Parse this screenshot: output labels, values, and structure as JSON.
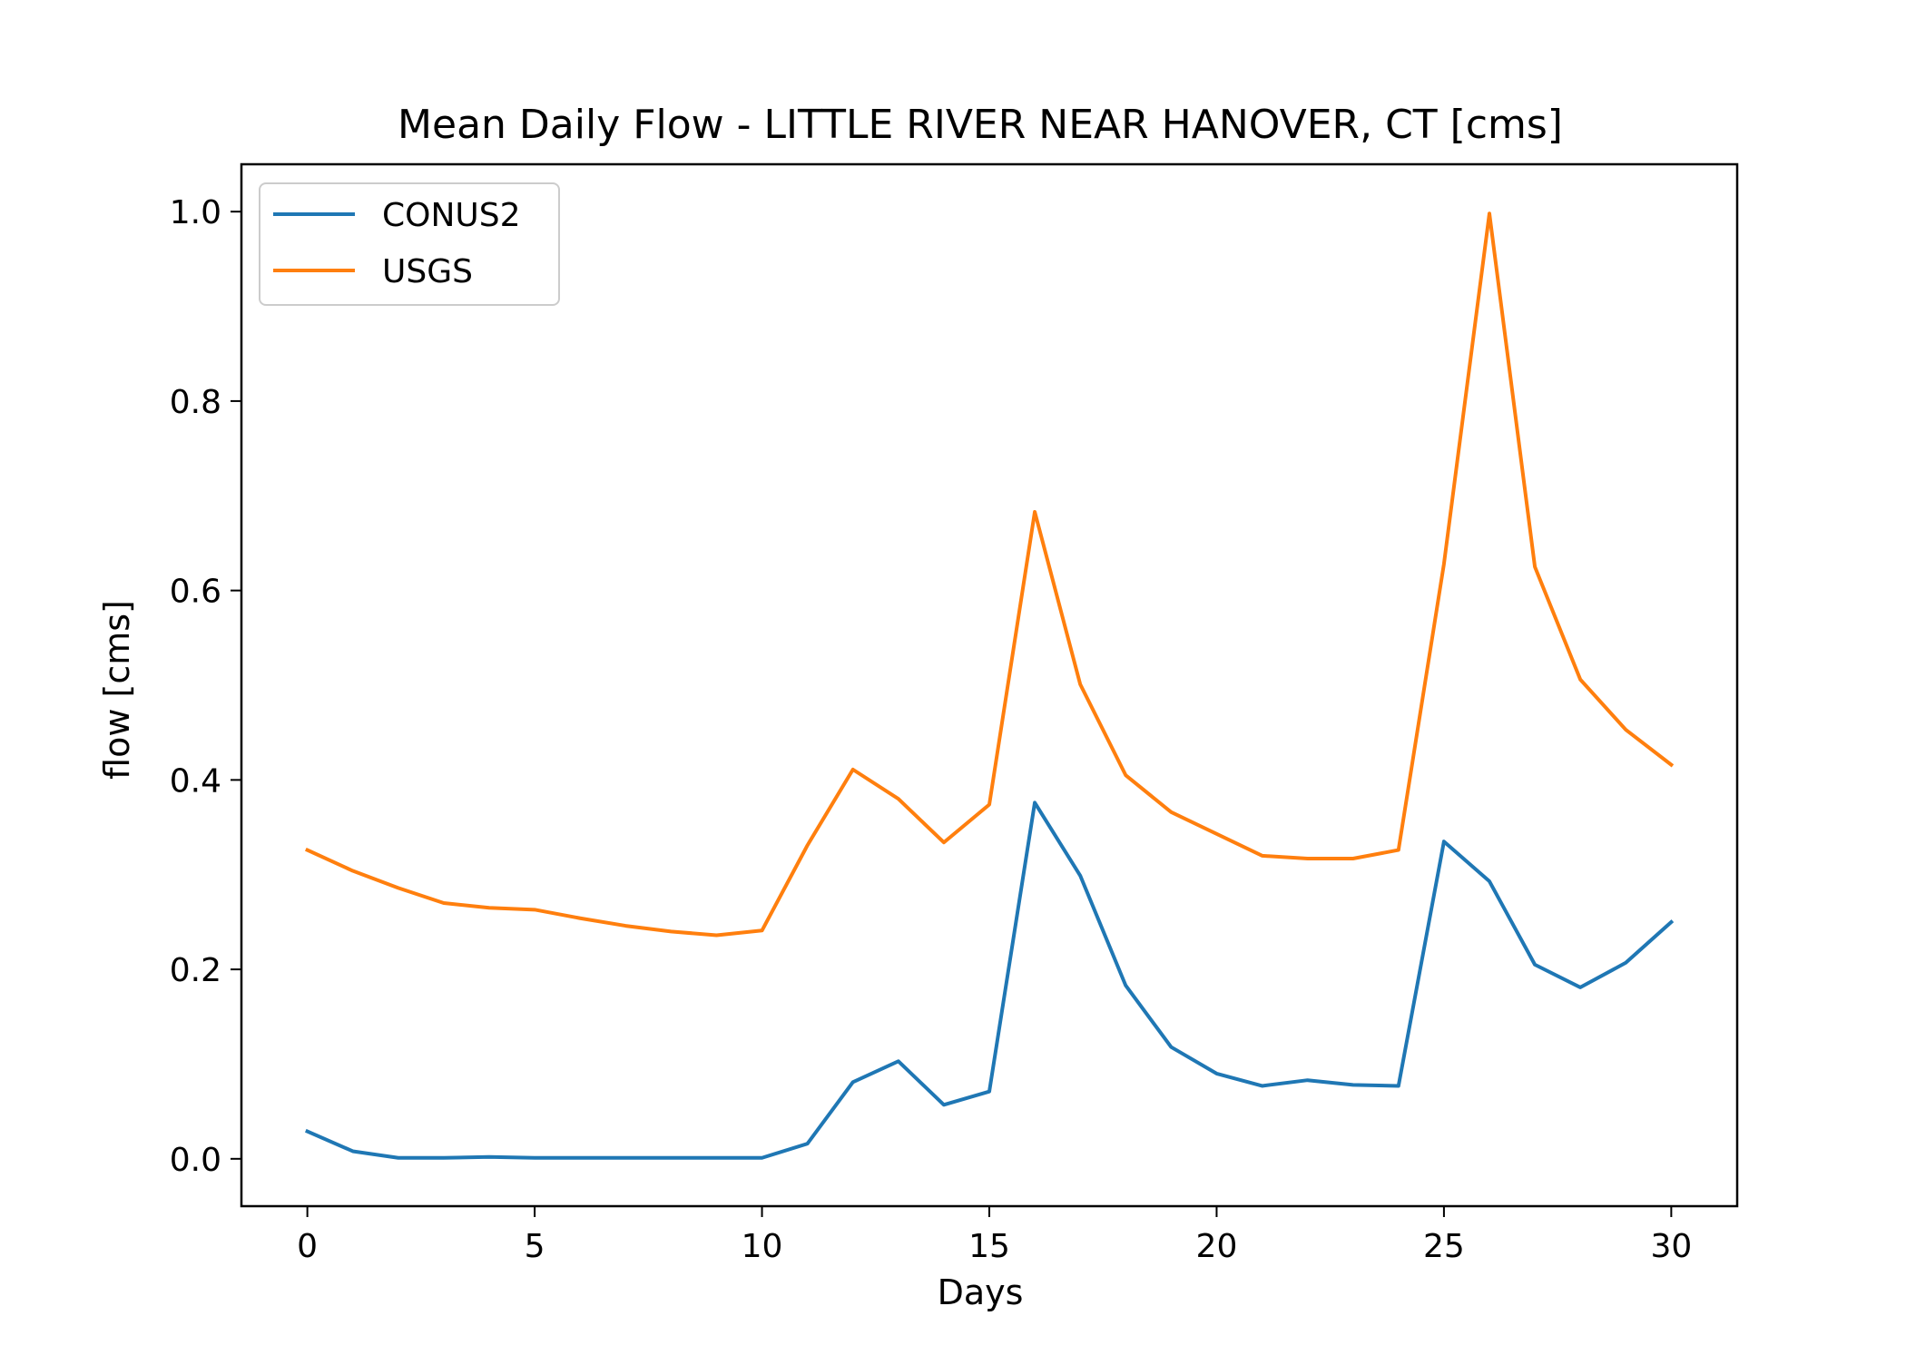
{
  "chart_data": {
    "type": "line",
    "title": "Mean Daily Flow - LITTLE RIVER NEAR HANOVER, CT [cms]",
    "xlabel": "Days",
    "ylabel": "flow [cms]",
    "xlim": [
      -1.45,
      31.45
    ],
    "ylim": [
      -0.05,
      1.05
    ],
    "xticks": [
      0,
      5,
      10,
      15,
      20,
      25,
      30
    ],
    "xtick_labels": [
      "0",
      "5",
      "10",
      "15",
      "20",
      "25",
      "30"
    ],
    "yticks": [
      0.0,
      0.2,
      0.4,
      0.6,
      0.8,
      1.0
    ],
    "ytick_labels": [
      "0.0",
      "0.2",
      "0.4",
      "0.6",
      "0.8",
      "1.0"
    ],
    "grid": false,
    "legend_position": "upper-left",
    "x": [
      0,
      1,
      2,
      3,
      4,
      5,
      6,
      7,
      8,
      9,
      10,
      11,
      12,
      13,
      14,
      15,
      16,
      17,
      18,
      19,
      20,
      21,
      22,
      23,
      24,
      25,
      26,
      27,
      28,
      29,
      30
    ],
    "series": [
      {
        "name": "CONUS2",
        "color": "#1f77b4",
        "values": [
          0.029,
          0.008,
          0.001,
          0.001,
          0.002,
          0.001,
          0.001,
          0.001,
          0.001,
          0.001,
          0.001,
          0.016,
          0.081,
          0.103,
          0.057,
          0.071,
          0.376,
          0.299,
          0.183,
          0.118,
          0.09,
          0.077,
          0.083,
          0.078,
          0.077,
          0.335,
          0.293,
          0.205,
          0.181,
          0.207,
          0.25
        ]
      },
      {
        "name": "USGS",
        "color": "#ff7f0e",
        "values": [
          0.326,
          0.304,
          0.286,
          0.27,
          0.265,
          0.263,
          0.254,
          0.246,
          0.24,
          0.236,
          0.241,
          0.331,
          0.411,
          0.38,
          0.334,
          0.374,
          0.683,
          0.501,
          0.405,
          0.366,
          0.343,
          0.32,
          0.317,
          0.317,
          0.326,
          0.628,
          0.998,
          0.625,
          0.506,
          0.453,
          0.416
        ]
      }
    ]
  }
}
